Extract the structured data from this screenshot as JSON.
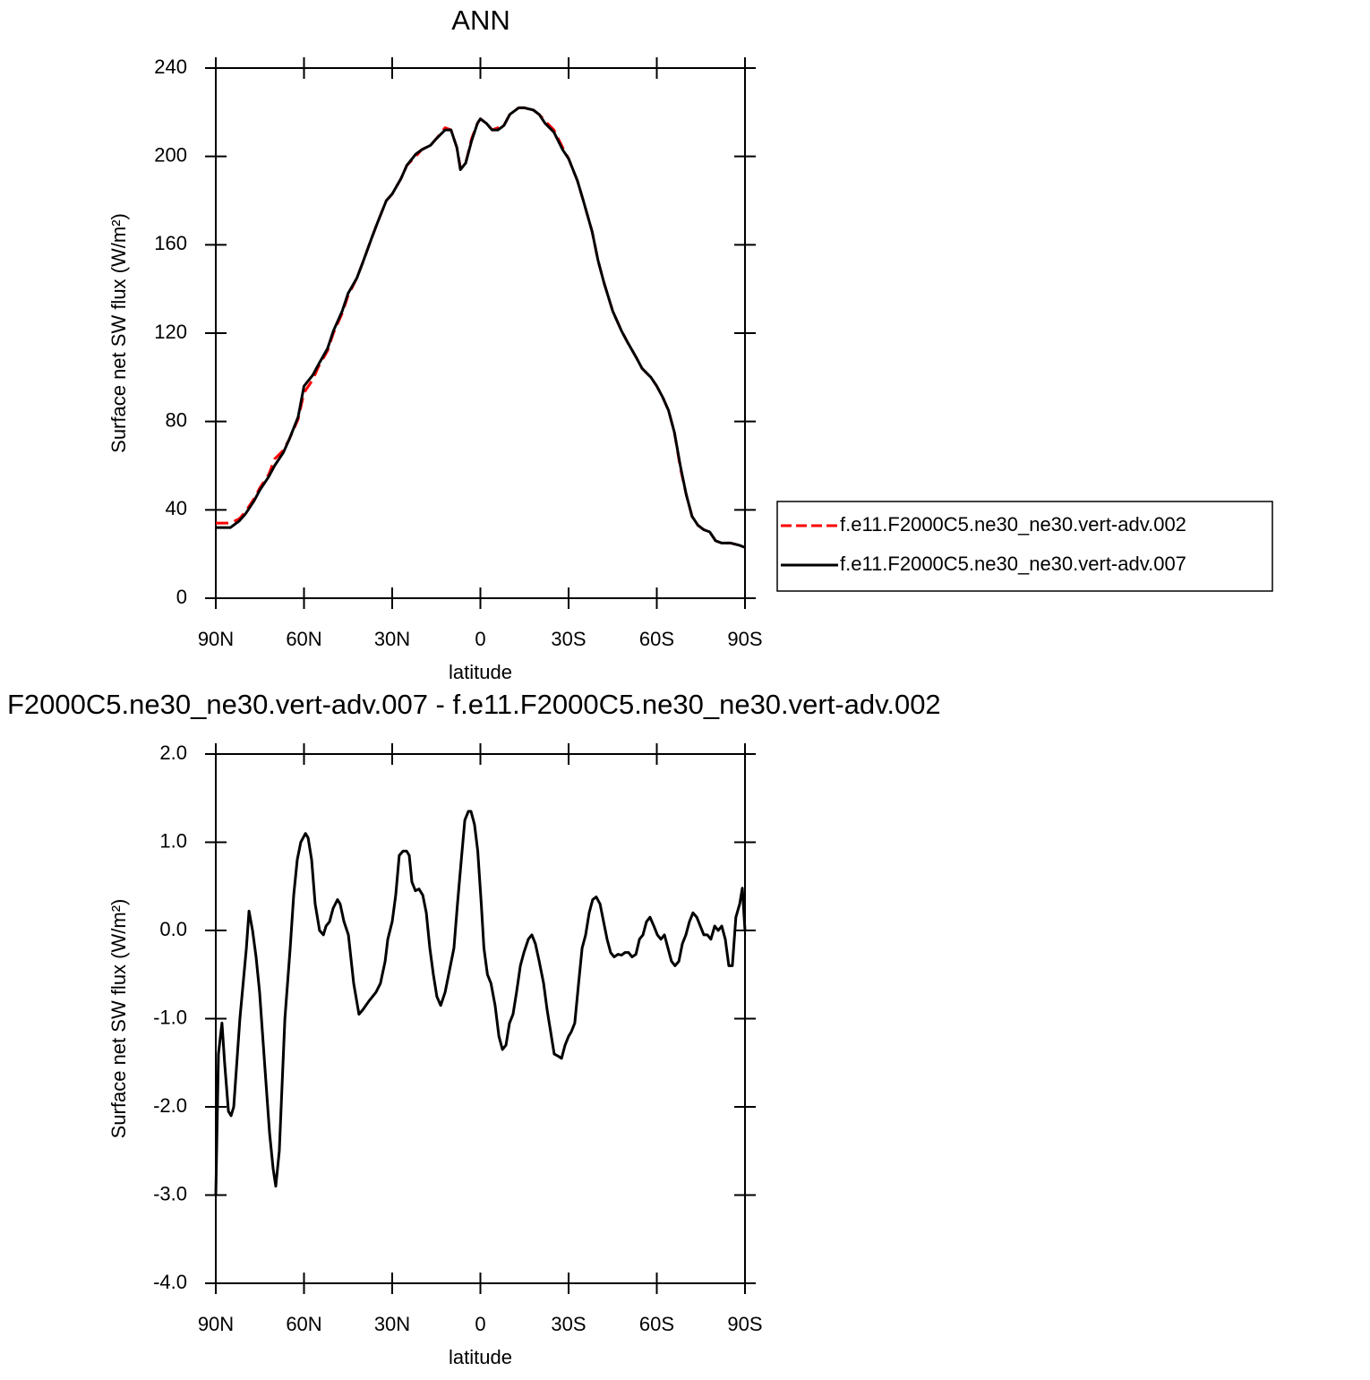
{
  "chart_data": [
    {
      "type": "line",
      "title": "ANN",
      "xlabel": "latitude",
      "ylabel": "Surface net SW flux (W/m²)",
      "x": [
        90,
        87,
        85,
        82,
        80,
        77,
        75,
        72,
        70,
        67,
        65,
        62,
        60,
        57,
        55,
        52,
        50,
        47,
        45,
        42,
        40,
        37,
        35,
        32,
        30,
        27,
        25,
        22,
        20,
        17,
        15,
        12,
        10,
        8,
        6.8,
        5,
        3,
        1,
        0,
        -2,
        -4,
        -6,
        -8,
        -10,
        -13,
        -15,
        -18,
        -20,
        -22,
        -25,
        -28,
        -30,
        -33,
        -35,
        -38,
        -40,
        -42,
        -45,
        -48,
        -50,
        -53,
        -55,
        -58,
        -60,
        -62,
        -64,
        -66,
        -68,
        -70,
        -72,
        -74,
        -76,
        -78,
        -80,
        -82,
        -85,
        -88,
        -90
      ],
      "series": [
        {
          "name": "f.e11.F2000C5.ne30_ne30.vert-adv.002",
          "color": "#ff0000",
          "line_style": "dashed",
          "values": [
            34,
            34,
            34,
            36,
            39,
            45,
            50,
            56,
            63,
            67,
            72,
            81,
            93,
            99,
            105,
            112,
            120,
            129,
            137,
            145,
            152,
            163,
            170,
            180,
            183,
            190,
            196,
            200,
            203,
            205,
            208,
            213,
            212,
            204,
            195,
            197,
            208,
            215,
            217,
            215,
            212,
            213,
            214,
            219,
            222,
            222,
            221,
            219,
            216,
            212,
            204,
            199,
            189,
            180,
            166,
            153,
            143,
            130,
            121,
            116,
            109,
            104,
            100,
            96,
            91,
            85,
            75,
            59,
            47,
            37,
            33,
            31,
            30,
            26,
            25,
            25,
            24,
            23
          ]
        },
        {
          "name": "f.e11.F2000C5.ne30_ne30.vert-adv.007",
          "color": "#000000",
          "line_style": "solid",
          "values": [
            32,
            32,
            32,
            35,
            38,
            44,
            49,
            55,
            60,
            66,
            72,
            82,
            96,
            101,
            106,
            113,
            121,
            130,
            138,
            145,
            152,
            163,
            170,
            180,
            183,
            190,
            196,
            201,
            203,
            205,
            208,
            212,
            212,
            204,
            194,
            197,
            207,
            215,
            217,
            215,
            212,
            212,
            214,
            219,
            222,
            222,
            221,
            219,
            215,
            211,
            203,
            199,
            189,
            180,
            166,
            153,
            143,
            130,
            121,
            116,
            109,
            104,
            100,
            96,
            91,
            85,
            75,
            60,
            47,
            37,
            33,
            31,
            30,
            26,
            25,
            25,
            24,
            23
          ]
        }
      ],
      "xlim": [
        90,
        -90
      ],
      "xticks": [
        {
          "value": 90,
          "label": "90N"
        },
        {
          "value": 60,
          "label": "60N"
        },
        {
          "value": 30,
          "label": "30N"
        },
        0,
        {
          "value": -30,
          "label": "30S"
        },
        {
          "value": -60,
          "label": "60S"
        },
        {
          "value": -90,
          "label": "90S"
        }
      ],
      "ylim": [
        0,
        240
      ],
      "yticks": [
        0,
        40,
        80,
        120,
        160,
        200,
        240
      ],
      "legend": "right"
    },
    {
      "type": "line",
      "title": "F2000C5.ne30_ne30.vert-adv.007 - f.e11.F2000C5.ne30_ne30.vert-adv.002",
      "xlabel": "latitude",
      "ylabel": "Surface net SW flux (W/m²)",
      "x": [
        90,
        89.1,
        87.9,
        87,
        85.7,
        84.8,
        83.9,
        81.8,
        79.6,
        78.7,
        77.5,
        76.3,
        75.1,
        73.2,
        71.7,
        70.5,
        69.6,
        68.4,
        66.5,
        64.7,
        63.5,
        62.3,
        61.1,
        59.5,
        58.6,
        57.4,
        56.2,
        54.7,
        53.4,
        52.5,
        51.3,
        50.1,
        48.6,
        47.7,
        46.4,
        44.9,
        43.1,
        41.3,
        40,
        37.9,
        35.5,
        34,
        32.4,
        31.5,
        30,
        28.8,
        27.6,
        26.3,
        25.1,
        24.2,
        23.3,
        22.1,
        20.9,
        19.6,
        18.4,
        17.2,
        16,
        14.8,
        13.5,
        12,
        10.5,
        9,
        7.8,
        6.5,
        5.3,
        4.1,
        3.2,
        2,
        0.9,
        -0.3,
        -1.2,
        -2.4,
        -3.6,
        -5,
        -6.3,
        -7.5,
        -8.7,
        -9.9,
        -11.1,
        -12.3,
        -13.6,
        -14.8,
        -16.3,
        -17.5,
        -18.7,
        -20,
        -21.5,
        -22.7,
        -23.9,
        -25.1,
        -26.7,
        -27.6,
        -28.8,
        -30,
        -30.9,
        -32.1,
        -33.4,
        -34.6,
        -35.8,
        -37,
        -38.2,
        -39.4,
        -40.7,
        -41.9,
        -43.1,
        -44.3,
        -45.5,
        -46.8,
        -48,
        -49.2,
        -50.4,
        -51.6,
        -52.9,
        -54.1,
        -55.3,
        -56.5,
        -57.7,
        -59,
        -60.2,
        -61.4,
        -62.6,
        -63.8,
        -65,
        -66.2,
        -67.5,
        -68.7,
        -69.9,
        -71.1,
        -72.3,
        -73.6,
        -74.8,
        -76,
        -77.2,
        -78.4,
        -79.7,
        -80.9,
        -82.1,
        -83.3,
        -84.5,
        -85.7,
        -86.9,
        -88.2,
        -89.1,
        -90
      ],
      "series": [
        {
          "name": null,
          "color": "#000000",
          "line_style": "solid",
          "values": [
            -3.0,
            -1.4,
            -1.05,
            -1.5,
            -2.05,
            -2.1,
            -2.0,
            -1.0,
            -0.2,
            0.22,
            0.0,
            -0.3,
            -0.7,
            -1.6,
            -2.3,
            -2.7,
            -2.9,
            -2.5,
            -1.0,
            -0.2,
            0.4,
            0.8,
            1.0,
            1.1,
            1.05,
            0.8,
            0.3,
            0.0,
            -0.05,
            0.05,
            0.1,
            0.25,
            0.35,
            0.3,
            0.1,
            -0.05,
            -0.6,
            -0.95,
            -0.9,
            -0.8,
            -0.7,
            -0.6,
            -0.35,
            -0.1,
            0.1,
            0.4,
            0.85,
            0.9,
            0.9,
            0.85,
            0.55,
            0.45,
            0.47,
            0.4,
            0.2,
            -0.2,
            -0.5,
            -0.75,
            -0.85,
            -0.7,
            -0.45,
            -0.2,
            0.3,
            0.8,
            1.25,
            1.35,
            1.35,
            1.2,
            0.9,
            0.3,
            -0.2,
            -0.5,
            -0.6,
            -0.85,
            -1.2,
            -1.35,
            -1.3,
            -1.05,
            -0.95,
            -0.7,
            -0.4,
            -0.25,
            -0.1,
            -0.05,
            -0.15,
            -0.35,
            -0.6,
            -0.9,
            -1.15,
            -1.4,
            -1.43,
            -1.45,
            -1.3,
            -1.2,
            -1.15,
            -1.05,
            -0.6,
            -0.2,
            -0.05,
            0.2,
            0.35,
            0.38,
            0.3,
            0.1,
            -0.1,
            -0.25,
            -0.3,
            -0.27,
            -0.28,
            -0.25,
            -0.25,
            -0.3,
            -0.27,
            -0.1,
            -0.05,
            0.1,
            0.15,
            0.05,
            -0.05,
            -0.1,
            -0.05,
            -0.2,
            -0.35,
            -0.4,
            -0.35,
            -0.15,
            -0.05,
            0.1,
            0.2,
            0.15,
            0.05,
            -0.05,
            -0.05,
            -0.1,
            0.05,
            0.0,
            0.05,
            -0.1,
            -0.4,
            -0.4,
            0.15,
            0.3,
            0.48,
            0.0
          ]
        }
      ],
      "xlim": [
        90,
        -90
      ],
      "xticks": [
        {
          "value": 90,
          "label": "90N"
        },
        {
          "value": 60,
          "label": "60N"
        },
        {
          "value": 30,
          "label": "30N"
        },
        0,
        {
          "value": -30,
          "label": "30S"
        },
        {
          "value": -60,
          "label": "60S"
        },
        {
          "value": -90,
          "label": "90S"
        }
      ],
      "ylim": [
        -4,
        2
      ],
      "yticks": [
        {
          "value": -4,
          "label": "-4.0"
        },
        {
          "value": -3,
          "label": "-3.0"
        },
        {
          "value": -2,
          "label": "-2.0"
        },
        {
          "value": -1,
          "label": "-1.0"
        },
        {
          "value": 0,
          "label": "0.0"
        },
        {
          "value": 1,
          "label": "1.0"
        },
        {
          "value": 2,
          "label": "2.0"
        }
      ]
    }
  ]
}
